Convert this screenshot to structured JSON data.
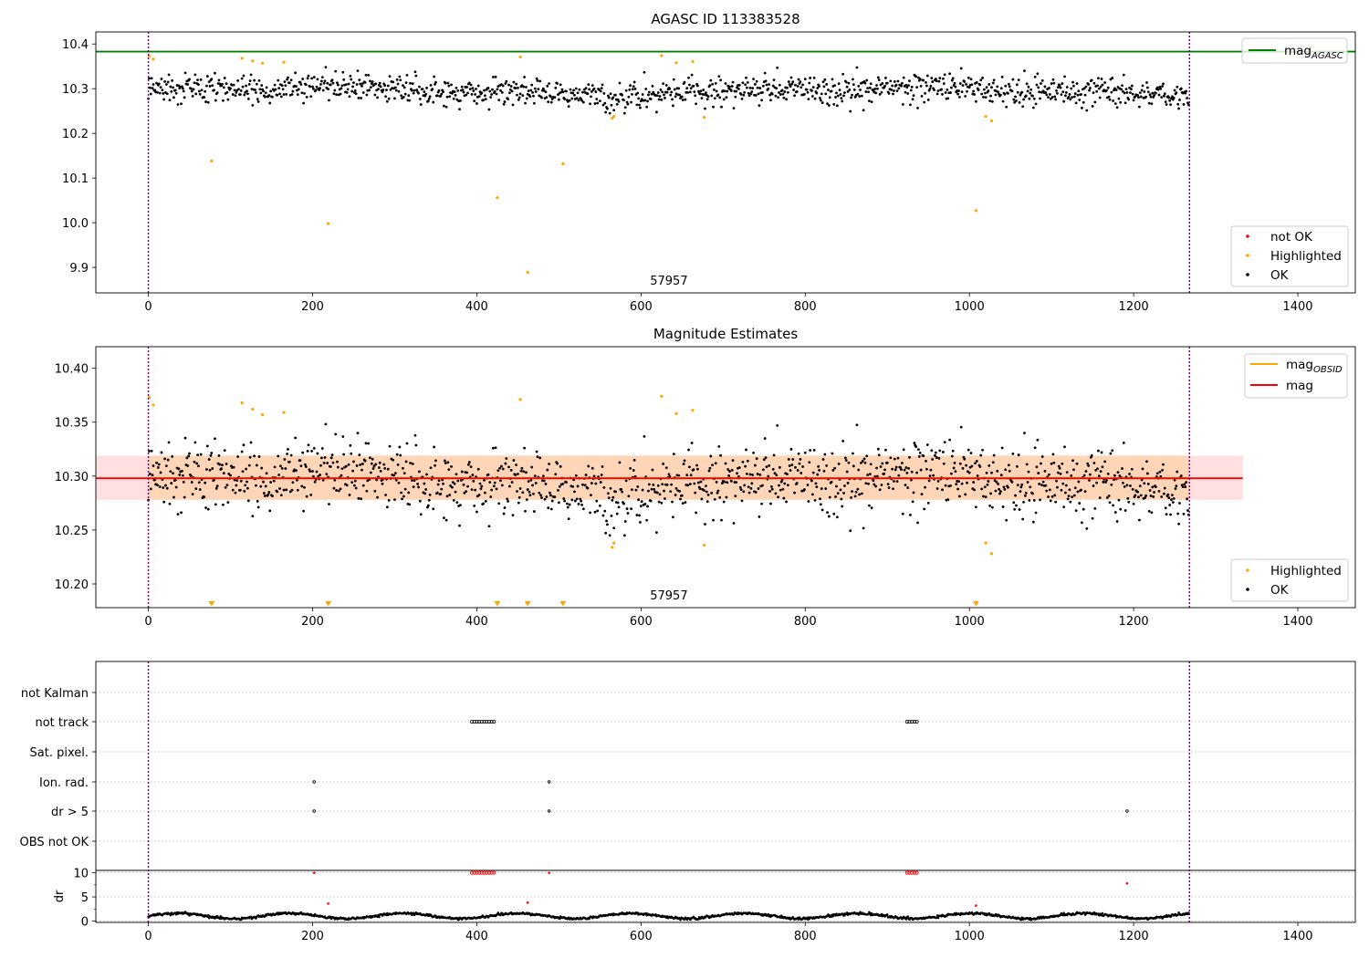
{
  "chart_data": [
    {
      "type": "scatter",
      "title": "AGASC ID 113383528",
      "xlim": [
        -64,
        1470
      ],
      "ylim": [
        9.843,
        10.427
      ],
      "xticks": [
        0,
        200,
        400,
        600,
        800,
        1000,
        1200,
        1400
      ],
      "yticks": [
        9.9,
        10.0,
        10.1,
        10.2,
        10.3,
        10.4
      ],
      "ytick_labels": [
        "9.9",
        "10.0",
        "10.1",
        "10.2",
        "10.3",
        "10.4"
      ],
      "obsid_boundaries": [
        0,
        1268
      ],
      "obsid_label": "57957",
      "obsid_label_x": 634,
      "mag_agasc": 10.383,
      "mag_agasc_color": "#008000",
      "ok_color": "#000000",
      "highlight_color": "#ffa500",
      "not_ok_color": "#ff0000",
      "ok_series": {
        "name": "OK",
        "n_points": 1268,
        "baseline": 10.295,
        "spread": 0.018,
        "range": [
          10.245,
          10.355
        ]
      },
      "highlighted": {
        "name": "Highlighted",
        "x": [
          1,
          6,
          77,
          114,
          127,
          139,
          165,
          219,
          425,
          453,
          462,
          505,
          565,
          567,
          625,
          643,
          663,
          677,
          1008,
          1020,
          1027
        ],
        "y": [
          10.373,
          10.366,
          10.138,
          10.368,
          10.362,
          10.357,
          10.359,
          9.998,
          10.056,
          10.371,
          9.889,
          10.132,
          10.234,
          10.238,
          10.374,
          10.358,
          10.361,
          10.236,
          10.027,
          10.238,
          10.228
        ]
      },
      "legend_upper": {
        "label_base": "mag",
        "label_sub": "AGASC"
      },
      "legend_lower": [
        "not OK",
        "Highlighted",
        "OK"
      ]
    },
    {
      "type": "scatter",
      "title": "Magnitude Estimates",
      "xlim": [
        -64,
        1470
      ],
      "ylim": [
        10.178,
        10.42
      ],
      "xticks": [
        0,
        200,
        400,
        600,
        800,
        1000,
        1200,
        1400
      ],
      "yticks": [
        10.2,
        10.25,
        10.3,
        10.35,
        10.4
      ],
      "ytick_labels": [
        "10.20",
        "10.25",
        "10.30",
        "10.35",
        "10.40"
      ],
      "obsid_boundaries": [
        0,
        1268
      ],
      "obsid_label": "57957",
      "obsid_label_x": 634,
      "mag": 10.298,
      "mag_band": [
        10.278,
        10.319
      ],
      "mag_band_xrange": [
        -64,
        1333
      ],
      "mag_obsid": 10.298,
      "mag_obsid_band": [
        10.278,
        10.319
      ],
      "mag_obsid_xrange": [
        0,
        1268
      ],
      "mag_color": "#ff0000",
      "mag_obsid_color": "#ffa500",
      "highlighted_clipped_x": [
        77,
        219,
        425,
        462,
        505,
        1008
      ],
      "legend_upper": [
        {
          "label_base": "mag",
          "label_sub": "OBSID"
        },
        {
          "label_base": "mag",
          "label_sub": ""
        }
      ],
      "legend_lower": [
        "Highlighted",
        "OK"
      ]
    },
    {
      "type": "scatter",
      "xlim": [
        -64,
        1470
      ],
      "xticks": [
        0,
        200,
        400,
        600,
        800,
        1000,
        1200,
        1400
      ],
      "flag_rows": [
        "not Kalman",
        "not track",
        "Sat. pixel.",
        "Ion. rad.",
        "dr > 5",
        "OBS not OK"
      ],
      "flags": {
        "not track": {
          "ranges": [
            [
              394,
              422
            ],
            [
              924,
              937
            ]
          ]
        },
        "Ion. rad.": {
          "x": [
            202,
            488
          ]
        },
        "dr > 5": {
          "x": [
            202,
            488,
            1192
          ]
        }
      },
      "dr": {
        "ylabel": "dr",
        "ylim": [
          -0.3,
          10.5
        ],
        "yticks": [
          0,
          5,
          10
        ],
        "ytick_labels": [
          "0",
          "5",
          "10"
        ],
        "clip": 10,
        "outlier_x": [
          202,
          219,
          462,
          488,
          1008,
          1192
        ],
        "outlier_y": [
          10,
          3.6,
          3.8,
          10,
          3.2,
          7.8
        ],
        "clipped_ranges": [
          [
            394,
            422
          ],
          [
            924,
            937
          ]
        ]
      }
    }
  ]
}
